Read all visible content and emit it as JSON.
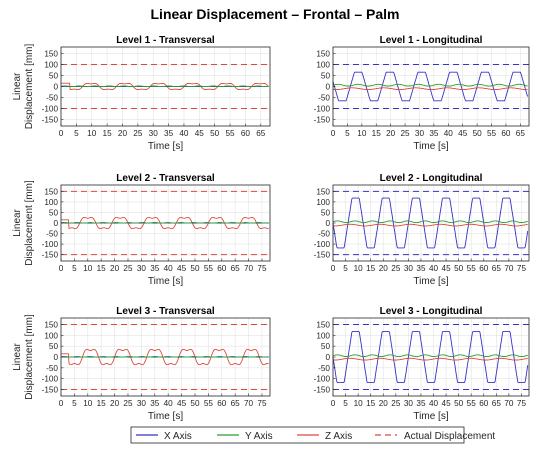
{
  "figure_title": "Linear Displacement – Frontal – Palm",
  "colors": {
    "x_axis": "#3434c8",
    "y_axis": "#2e9e2e",
    "z_axis": "#e0483c",
    "actual": "#e0483c",
    "actual_lng": "#3434c8",
    "grid": "#e3e3e3"
  },
  "legend": {
    "items": [
      {
        "label": "X Axis",
        "color": "#3434c8",
        "dash": false
      },
      {
        "label": "Y Axis",
        "color": "#2e9e2e",
        "dash": false
      },
      {
        "label": "Z Axis",
        "color": "#e0483c",
        "dash": false
      },
      {
        "label": "Actual Displacement",
        "color": "#e0483c",
        "dash": true
      }
    ]
  },
  "chart_data": [
    {
      "type": "line",
      "title": "Level 1 - Transversal",
      "xlabel": "Time [s]",
      "ylabel": [
        "Linear",
        "Displacement [mm]"
      ],
      "xlim": [
        0,
        68
      ],
      "ylim": [
        -180,
        180
      ],
      "xticks": [
        0,
        5,
        10,
        15,
        20,
        25,
        30,
        35,
        40,
        45,
        50,
        55,
        60,
        65
      ],
      "yticks": [
        -150,
        -100,
        -50,
        0,
        50,
        100,
        150
      ],
      "actual_displacement": 100,
      "dominant_axis": "Z Axis",
      "oscillation": {
        "amplitude": 16,
        "period": 11,
        "phase": 7,
        "shape": "wave"
      },
      "grid": true
    },
    {
      "type": "line",
      "title": "Level 1 - Longitudinal",
      "xlabel": "Time [s]",
      "ylabel": "",
      "xlim": [
        0,
        68
      ],
      "ylim": [
        -180,
        180
      ],
      "xticks": [
        0,
        5,
        10,
        15,
        20,
        25,
        30,
        35,
        40,
        45,
        50,
        55,
        60,
        65
      ],
      "yticks": [
        -150,
        -100,
        -50,
        0,
        50,
        100,
        150
      ],
      "actual_displacement": 100,
      "dominant_axis": "X Axis",
      "oscillation": {
        "amplitude": 65,
        "period": 11,
        "phase": 6,
        "shape": "trapezoid"
      },
      "grid": true
    },
    {
      "type": "line",
      "title": "Level 2 - Transversal",
      "xlabel": "Time [s]",
      "ylabel": [
        "Linear",
        "Displacement [mm]"
      ],
      "xlim": [
        0,
        78
      ],
      "ylim": [
        -180,
        180
      ],
      "xticks": [
        0,
        5,
        10,
        15,
        20,
        25,
        30,
        35,
        40,
        45,
        50,
        55,
        60,
        65,
        70,
        75
      ],
      "yticks": [
        -150,
        -100,
        -50,
        0,
        50,
        100,
        150
      ],
      "actual_displacement": 150,
      "dominant_axis": "Z Axis",
      "oscillation": {
        "amplitude": 30,
        "period": 12,
        "phase": 7,
        "shape": "wave"
      },
      "grid": true
    },
    {
      "type": "line",
      "title": "Level 2 - Longitudinal",
      "xlabel": "Time [s]",
      "ylabel": "",
      "xlim": [
        0,
        78
      ],
      "ylim": [
        -180,
        180
      ],
      "xticks": [
        0,
        5,
        10,
        15,
        20,
        25,
        30,
        35,
        40,
        45,
        50,
        55,
        60,
        65,
        70,
        75
      ],
      "yticks": [
        -150,
        -100,
        -50,
        0,
        50,
        100,
        150
      ],
      "actual_displacement": 150,
      "dominant_axis": "X Axis",
      "oscillation": {
        "amplitude": 118,
        "period": 12,
        "phase": 6,
        "shape": "trapezoid"
      },
      "grid": true
    },
    {
      "type": "line",
      "title": "Level 3 - Transversal",
      "xlabel": "Time [s]",
      "ylabel": [
        "Linear",
        "Displacement [mm]"
      ],
      "xlim": [
        0,
        78
      ],
      "ylim": [
        -180,
        180
      ],
      "xticks": [
        0,
        5,
        10,
        15,
        20,
        25,
        30,
        35,
        40,
        45,
        50,
        55,
        60,
        65,
        70,
        75
      ],
      "yticks": [
        -150,
        -100,
        -50,
        0,
        50,
        100,
        150
      ],
      "actual_displacement": 150,
      "dominant_axis": "Z Axis",
      "oscillation": {
        "amplitude": 40,
        "period": 12,
        "phase": 8,
        "shape": "wave"
      },
      "grid": true
    },
    {
      "type": "line",
      "title": "Level 3 - Longitudinal",
      "xlabel": "Time [s]",
      "ylabel": "",
      "xlim": [
        0,
        78
      ],
      "ylim": [
        -180,
        180
      ],
      "xticks": [
        0,
        5,
        10,
        15,
        20,
        25,
        30,
        35,
        40,
        45,
        50,
        55,
        60,
        65,
        70,
        75
      ],
      "yticks": [
        -150,
        -100,
        -50,
        0,
        50,
        100,
        150
      ],
      "actual_displacement": 150,
      "dominant_axis": "X Axis",
      "oscillation": {
        "amplitude": 118,
        "period": 12,
        "phase": 6,
        "shape": "trapezoid"
      },
      "grid": true
    }
  ]
}
